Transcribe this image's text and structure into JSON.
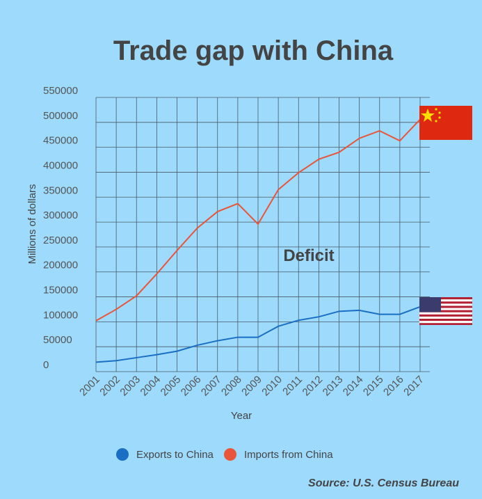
{
  "chart_data": {
    "type": "line",
    "title": "Trade gap with China",
    "x": [
      "2001",
      "2002",
      "2003",
      "2004",
      "2005",
      "2006",
      "2007",
      "2008",
      "2009",
      "2010",
      "2011",
      "2012",
      "2013",
      "2014",
      "2015",
      "2016",
      "2017"
    ],
    "series": [
      {
        "name": "Exports to China",
        "color": "#1a6fc4",
        "values": [
          19000,
          22000,
          28000,
          34000,
          41000,
          53000,
          62000,
          69000,
          69000,
          91000,
          103000,
          110000,
          121000,
          123000,
          115000,
          115000,
          130000
        ]
      },
      {
        "name": "Imports from China",
        "color": "#e8553a",
        "values": [
          102000,
          125000,
          152000,
          196000,
          243000,
          288000,
          321000,
          337000,
          296000,
          365000,
          399000,
          426000,
          440000,
          468000,
          483000,
          463000,
          506000
        ]
      }
    ],
    "ylim": [
      0,
      550000
    ],
    "yticks": [
      0,
      50000,
      100000,
      150000,
      200000,
      250000,
      300000,
      350000,
      400000,
      450000,
      500000,
      550000
    ],
    "y_label": "Millions of dollars",
    "x_label": "Year",
    "grid": true,
    "annotation": "Deficit",
    "source": "Source: U.S. Census Bureau"
  }
}
